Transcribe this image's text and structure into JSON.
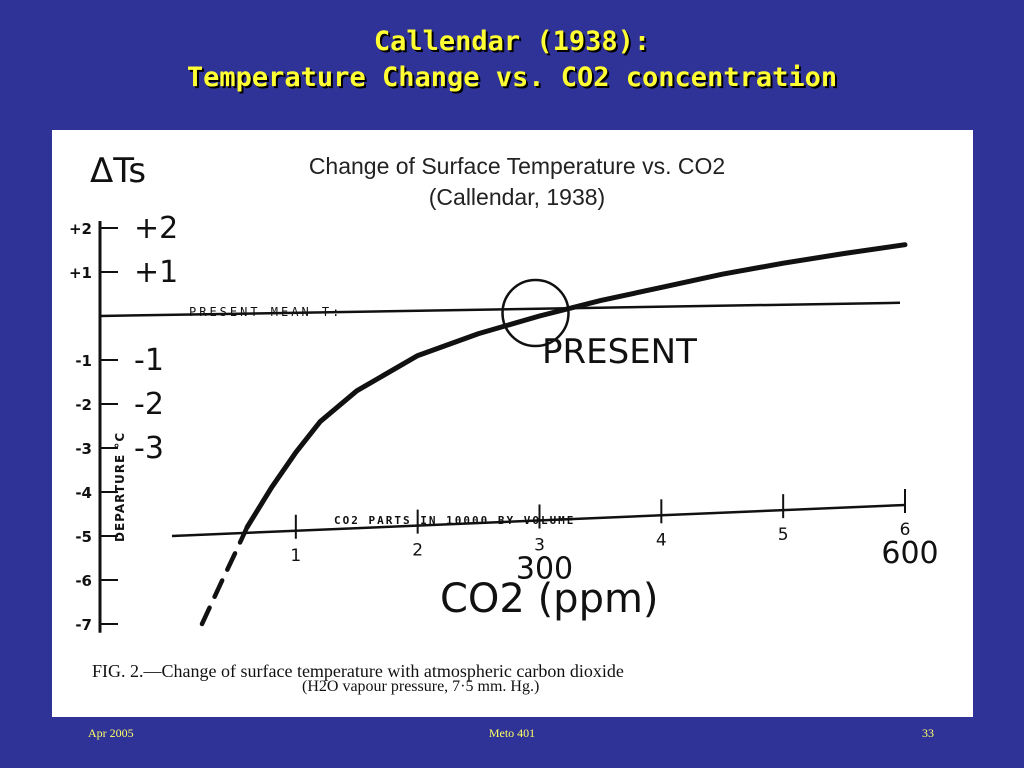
{
  "slide": {
    "title_line1": "Callendar (1938):",
    "title_line2": "Temperature Change vs. CO2 concentration"
  },
  "footer": {
    "date": "Apr 2005",
    "course": "Meto 401",
    "page": "33"
  },
  "colors": {
    "background": "#2f3397",
    "title": "#ffff33",
    "footer": "#ffff66",
    "panel": "#ffffff",
    "ink": "#111111"
  },
  "chart_data": {
    "type": "line",
    "title": "Change of Surface Temperature vs. CO2",
    "subtitle": "(Callendar, 1938)",
    "ylabel": "ΔTs",
    "ylabel_vertical": "DEPARTURE °C",
    "xlabel_printed": "CO2 PARTS IN 10000 BY VOLUME",
    "xlabel_handwritten": "CO2 (ppm)",
    "xlim": [
      0,
      6
    ],
    "ylim": [
      -7.2,
      2.5
    ],
    "yticks": [
      {
        "value": 2,
        "printed": "+2",
        "handwritten": "+2"
      },
      {
        "value": 1,
        "printed": "+1",
        "handwritten": "+1"
      },
      {
        "value": -1,
        "printed": "-1",
        "handwritten": "-1"
      },
      {
        "value": -2,
        "printed": "-2",
        "handwritten": "-2"
      },
      {
        "value": -3,
        "printed": "-3",
        "handwritten": "-3"
      },
      {
        "value": -4,
        "printed": "-4",
        "handwritten": ""
      },
      {
        "value": -5,
        "printed": "-5",
        "handwritten": ""
      },
      {
        "value": -6,
        "printed": "-6",
        "handwritten": ""
      },
      {
        "value": -7,
        "printed": "-7",
        "handwritten": ""
      }
    ],
    "xticks": [
      {
        "value": 1,
        "label": "1"
      },
      {
        "value": 2,
        "label": "2"
      },
      {
        "value": 3,
        "label": "3"
      },
      {
        "value": 4,
        "label": "4"
      },
      {
        "value": 5,
        "label": "5"
      },
      {
        "value": 6,
        "label": "6"
      }
    ],
    "x_annotations": [
      {
        "value": 3,
        "label": "300"
      },
      {
        "value": 6,
        "label": "600"
      }
    ],
    "present_mean_label": "PRESENT MEAN T:",
    "present_label": "PRESENT",
    "present_point": {
      "x": 3,
      "y": 0
    },
    "series": [
      {
        "style": "solid",
        "x": [
          0.6,
          0.8,
          1.0,
          1.2,
          1.5,
          2.0,
          2.5,
          3.0,
          3.5,
          4.0,
          4.5,
          5.0,
          5.5,
          6.0
        ],
        "y": [
          -4.8,
          -3.9,
          -3.1,
          -2.4,
          -1.7,
          -0.9,
          -0.4,
          0.0,
          0.35,
          0.65,
          0.95,
          1.2,
          1.42,
          1.62
        ]
      },
      {
        "style": "dashed",
        "x": [
          0.23,
          0.38,
          0.5,
          0.6
        ],
        "y": [
          -7.0,
          -6.1,
          -5.4,
          -4.8
        ]
      }
    ],
    "present_mean_line": {
      "x": [
        0,
        6
      ],
      "y": [
        0,
        0.3
      ]
    },
    "caption_line1": "FIG. 2.—Change of surface temperature with atmospheric carbon dioxide",
    "caption_line2": "(H2O vapour pressure, 7·5 mm. Hg.)",
    "grid": false,
    "legend": "none"
  }
}
